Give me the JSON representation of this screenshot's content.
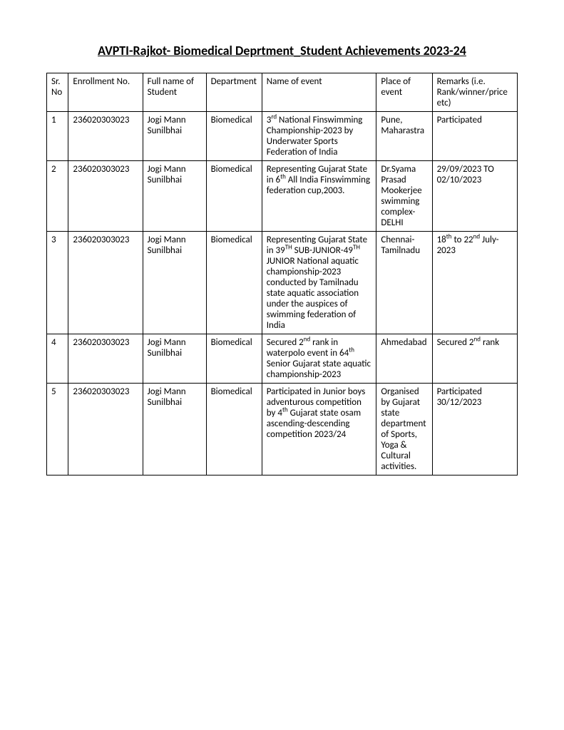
{
  "title": "AVPTI-Rajkot- Biomedical Deprtment_Student Achievements 2023-24",
  "columns": [
    "Sr. No",
    "Enrollment No.",
    "Full name of Student",
    "Department",
    "Name of event",
    "Place of event",
    "Remarks (i.e. Rank/winner/price etc)"
  ],
  "column_widths": [
    "28px",
    "96px",
    "82px",
    "72px",
    "148px",
    "72px",
    "110px"
  ],
  "font_family": "Calibri, Arial, sans-serif",
  "font_size_body": 13,
  "font_size_title": 18,
  "border_color": "#000000",
  "background_color": "#ffffff",
  "text_color": "#000000",
  "rows": [
    {
      "sr": "1",
      "enrollment": "236020303023",
      "name": "Jogi Mann Sunilbhai",
      "department": "Biomedical",
      "event_html": "3<span class=\"sup\">rd</span> National Finswimming Championship-2023 by Underwater Sports Federation of India",
      "place": "Pune, Maharastra",
      "remarks_html": "Participated"
    },
    {
      "sr": "2",
      "enrollment": "236020303023",
      "name": "Jogi Mann Sunilbhai",
      "department": "Biomedical",
      "event_html": "Representing Gujarat State in 6<span class=\"sup\">th</span> All India Finswimming federation cup,2003.",
      "place": "Dr.Syama Prasad Mookerjee swimming complex-DELHI",
      "remarks_html": "29/09/2023 TO 02/10/2023"
    },
    {
      "sr": "3",
      "enrollment": "236020303023",
      "name": "Jogi Mann Sunilbhai",
      "department": "Biomedical",
      "event_html": "Representing Gujarat State in 39<span class=\"sup\">TH</span> SUB-JUNIOR-49<span class=\"sup\">TH</span> JUNIOR National aquatic championship-2023 conducted by Tamilnadu state aquatic association under the auspices of swimming federation of India",
      "place": "Chennai-Tamilnadu",
      "remarks_html": "18<span class=\"sup\">th</span> to 22<span class=\"sup\">nd</span> July-2023"
    },
    {
      "sr": "4",
      "enrollment": "236020303023",
      "name": "Jogi Mann Sunilbhai",
      "department": "Biomedical",
      "event_html": "Secured 2<span class=\"sup\">nd</span> rank in waterpolo event in 64<span class=\"sup\">th</span> Senior Gujarat state aquatic championship-2023",
      "place": "Ahmedabad",
      "remarks_html": "Secured 2<span class=\"sup\">nd</span> rank"
    },
    {
      "sr": "5",
      "enrollment": "236020303023",
      "name": "Jogi Mann Sunilbhai",
      "department": "Biomedical",
      "event_html": "Participated in Junior boys adventurous competition by 4<span class=\"sup\">th</span> Gujarat state osam ascending-descending competition 2023/24",
      "place": "Organised by Gujarat state department of Sports, Yoga & Cultural activities.",
      "remarks_html": "Participated 30/12/2023"
    }
  ]
}
